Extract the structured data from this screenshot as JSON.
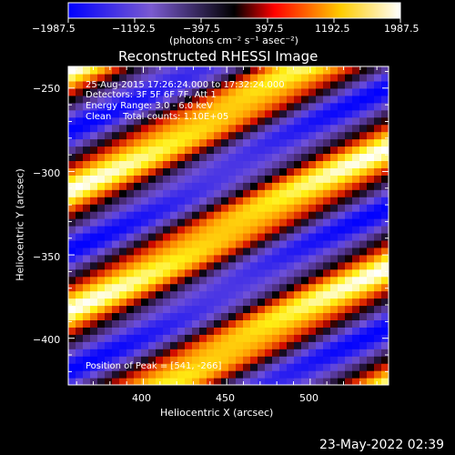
{
  "colorbar": {
    "tick_labels": [
      "−1987.5",
      "−1192.5",
      "−397.5",
      "397.5",
      "1192.5",
      "1987.5"
    ],
    "units": "(photons cm⁻² s⁻¹ asec⁻²)",
    "colors": [
      "#0000ff",
      "#7a5ad0",
      "#000000",
      "#ff0000",
      "#ffff00",
      "#ffffff"
    ]
  },
  "chart_data": {
    "type": "heatmap",
    "title": "Reconstructed RHESSI Image",
    "xlabel": "Heliocentric X (arcsec)",
    "ylabel": "Heliocentric Y (arcsec)",
    "xlim": [
      355,
      547
    ],
    "ylim": [
      -428,
      -237
    ],
    "x_ticks": [
      400,
      450,
      500
    ],
    "y_ticks": [
      -250,
      -300,
      -350,
      -400
    ],
    "zlim": [
      -1987.5,
      1987.5
    ],
    "annotations": [
      "25-Aug-2015 17:26:24.000 to 17:32:24.000",
      "Detectors: 3F 5F 6F 7F, Att 1",
      "Energy Range: 3.0 - 6.0 keV",
      "Clean    Total counts: 1.10E+05"
    ],
    "peak_text": "Position of Peak = [541, -266]",
    "fringe": {
      "slope_deg": 27,
      "period_arcsec": 64,
      "phase_arcsec": 0,
      "amplitude": 1987.5
    }
  },
  "footer": {
    "date_text": "23-May-2022 02:39"
  }
}
